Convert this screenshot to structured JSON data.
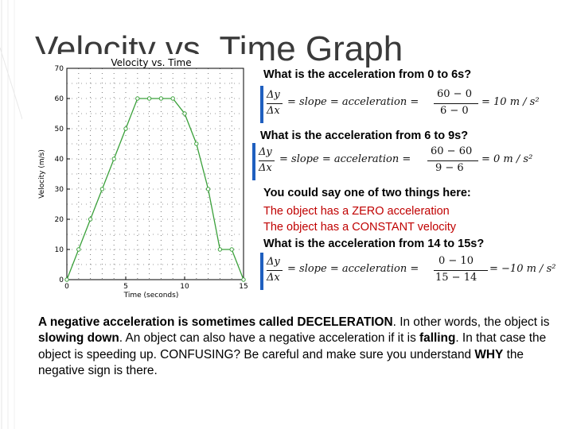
{
  "slide_title": "Velocity vs. Time Graph",
  "chart_data": {
    "type": "line",
    "title": "Velocity vs. Time",
    "xlabel": "Time (seconds)",
    "ylabel": "Velocity (m/s)",
    "xlim": [
      0,
      15
    ],
    "ylim": [
      0,
      70
    ],
    "x_ticks": [
      "0",
      "5",
      "10",
      "15"
    ],
    "y_ticks": [
      "0",
      "10",
      "20",
      "30",
      "40",
      "50",
      "60",
      "70"
    ],
    "grid": "dotted",
    "series": [
      {
        "x": [
          0,
          1,
          2,
          3,
          4,
          5,
          6,
          7,
          8,
          9,
          10,
          11,
          12,
          13,
          14,
          15
        ],
        "values": [
          0,
          10,
          20,
          30,
          40,
          50,
          60,
          60,
          60,
          60,
          55,
          45,
          30,
          10,
          10,
          0
        ],
        "color": "#3aa03a"
      }
    ]
  },
  "questions": [
    {
      "text": "What is the acceleration from 0 to 6s?",
      "eq": {
        "lhs_num": "Δy",
        "lhs_den": "Δx",
        "mid": "= slope = acceleration =",
        "num": "60 − 0",
        "den": "6 − 0",
        "result": "= 10 m / s²"
      }
    },
    {
      "text": "What is the acceleration from 6 to 9s?",
      "eq": {
        "lhs_num": "Δy",
        "lhs_den": "Δx",
        "mid": "= slope = acceleration =",
        "num": "60 − 60",
        "den": "9 − 6",
        "result": "= 0 m / s²"
      }
    },
    {
      "text": "What is the acceleration from 14 to 15s?",
      "eq": {
        "lhs_num": "Δy",
        "lhs_den": "Δx",
        "mid": "= slope = acceleration =",
        "num": "0 − 10",
        "den": "15 − 14",
        "result": "= −10 m / s²"
      }
    }
  ],
  "answer_intro": "You could say one of two things here:",
  "answer_lines": [
    "The object has a ZERO acceleration",
    "The object has a CONSTANT velocity"
  ],
  "paragraph": {
    "s1a": "A negative acceleration is sometimes called ",
    "s1b": "DECELERATION",
    "s1c": ". In other words, the object is ",
    "s1d": "slowing down",
    "s1e": ". An object can also have a negative acceleration if it is ",
    "s1f": "falling",
    "s1g": ". In that case the object is speeding up. CONFUSING? Be careful and make sure you understand ",
    "s1h": "WHY",
    "s1i": " the negative sign is there."
  },
  "colors": {
    "equation_border": "#1f5fbf",
    "answer_red": "#c00000",
    "line_green": "#3aa03a"
  }
}
